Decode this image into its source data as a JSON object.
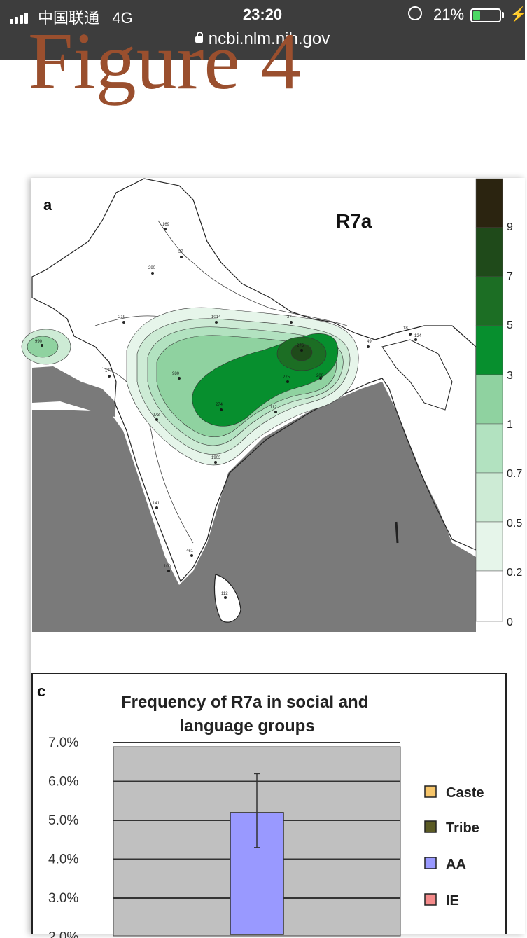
{
  "status_bar": {
    "carrier": "中国联通",
    "network": "4G",
    "time": "23:20",
    "battery_pct": "21%",
    "url": "ncbi.nlm.nih.gov"
  },
  "figure_title": "Figure 4",
  "map": {
    "panel_label": "a",
    "haplogroup": "R7a",
    "scale_labels": [
      "9",
      "7",
      "5",
      "3",
      "1",
      "0.7",
      "0.5",
      "0.2",
      "0"
    ],
    "scale_colors": [
      "#2b2410",
      "#1f4a1a",
      "#1c6e24",
      "#078f2e",
      "#8fd2a0",
      "#b2e2c0",
      "#cdebd5",
      "#e6f5ea",
      "#ffffff"
    ],
    "sample_labels": [
      "169",
      "37",
      "290",
      "219",
      "1014",
      "37",
      "49",
      "18",
      "124",
      "990",
      "177",
      "980",
      "273",
      "274",
      "275",
      "208",
      "112",
      "275",
      "1903",
      "141",
      "461",
      "100",
      "112"
    ]
  },
  "chart_data": {
    "type": "bar",
    "panel_label": "c",
    "title": "Frequency of R7a in social and language groups",
    "y_ticks": [
      "7.0%",
      "6.0%",
      "5.0%",
      "4.0%",
      "3.0%",
      "2.0%"
    ],
    "ylim": [
      0,
      7
    ],
    "legend": [
      {
        "name": "Caste",
        "color": "#f6c56a"
      },
      {
        "name": "Tribe",
        "color": "#5a5a24"
      },
      {
        "name": "AA",
        "color": "#9999ff"
      },
      {
        "name": "IE",
        "color": "#f48a8a"
      }
    ],
    "series": [
      {
        "name": "AA",
        "value": 5.2,
        "error_low": 4.3,
        "error_high": 6.2,
        "color": "#9999ff"
      }
    ]
  }
}
